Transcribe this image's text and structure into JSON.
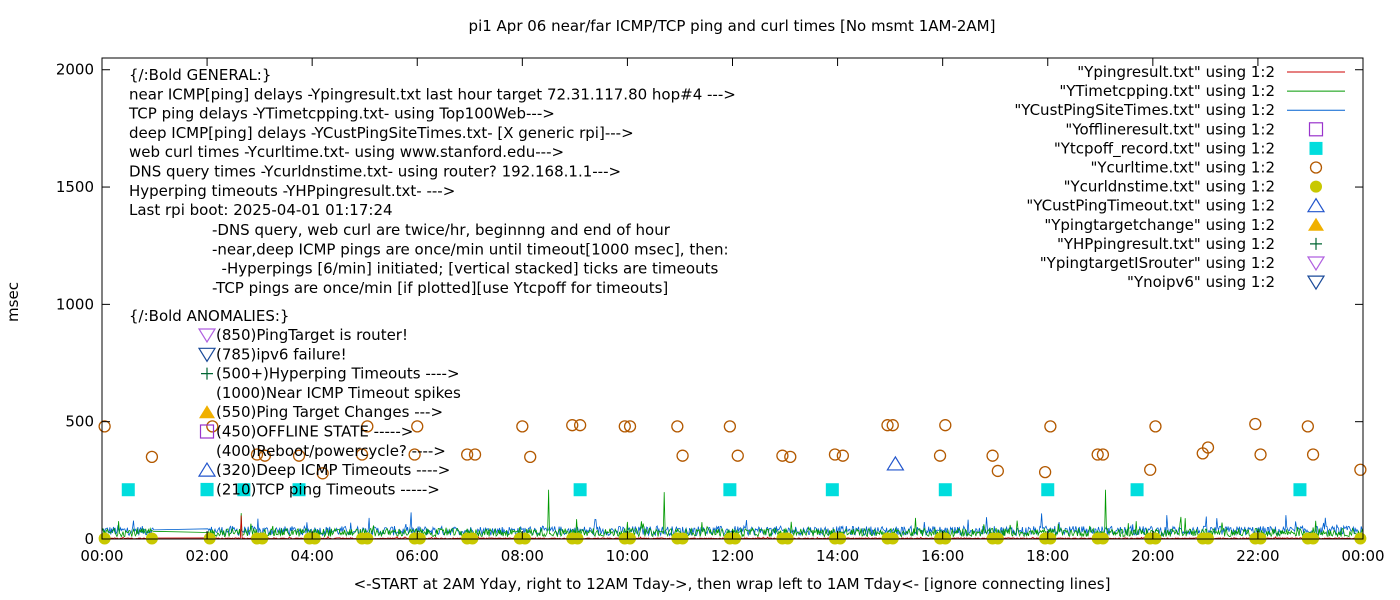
{
  "chart_data": {
    "type": "scatter",
    "title": "pi1 Apr 06  near/far ICMP/TCP ping and curl times [No msmt 1AM-2AM]",
    "xlabel": "<-START at 2AM Yday, right to 12AM Tday->, then wrap left to 1AM Tday<- [ignore connecting lines]",
    "ylabel": "msec",
    "xlim": [
      0,
      24
    ],
    "ylim": [
      0,
      2050
    ],
    "xticks": [
      "00:00",
      "02:00",
      "04:00",
      "06:00",
      "08:00",
      "10:00",
      "12:00",
      "14:00",
      "16:00",
      "18:00",
      "20:00",
      "22:00",
      "00:00"
    ],
    "yticks": [
      0,
      500,
      1000,
      1500,
      2000
    ],
    "grid": false,
    "legend_position": "top-right",
    "legend": [
      {
        "label": "\"Ypingresult.txt\" using 1:2",
        "marker": "line",
        "color": "#cc0000"
      },
      {
        "label": "\"YTimetcpping.txt\" using 1:2",
        "marker": "line",
        "color": "#009900"
      },
      {
        "label": "\"YCustPingSiteTimes.txt\" using 1:2",
        "marker": "line",
        "color": "#0060d0"
      },
      {
        "label": "\"Yofflineresult.txt\" using 1:2",
        "marker": "open-square",
        "color": "#9933cc"
      },
      {
        "label": "\"Ytcpoff_record.txt\" using 1:2",
        "marker": "filled-square",
        "color": "#00dddd"
      },
      {
        "label": "\"Ycurltime.txt\" using 1:2",
        "marker": "open-circle",
        "color": "#b35900"
      },
      {
        "label": "\"Ycurldnstime.txt\" using 1:2",
        "marker": "filled-circle",
        "color": "#c8c800"
      },
      {
        "label": "\"YCustPingTimeout.txt\" using 1:2",
        "marker": "open-triangle-up",
        "color": "#2255cc"
      },
      {
        "label": "\"Ypingtargetchange\" using 1:2",
        "marker": "filled-triangle-up",
        "color": "#f0b000"
      },
      {
        "label": "\"YHPpingresult.txt\" using 1:2",
        "marker": "plus",
        "color": "#006633"
      },
      {
        "label": "\"YpingtargetISrouter\" using 1:2",
        "marker": "open-triangle-down",
        "color": "#b060e0"
      },
      {
        "label": "\"Ynoipv6\" using 1:2",
        "marker": "open-triangle-down",
        "color": "#1a4a99"
      }
    ],
    "info_lines": [
      "{/:Bold GENERAL:}",
      "near ICMP[ping] delays -Ypingresult.txt last hour target 72.31.117.80 hop#4 --->",
      "TCP ping delays -YTimetcpping.txt- using Top100Web--->",
      "deep ICMP[ping] delays -YCustPingSiteTimes.txt- [X generic rpi]--->",
      "web curl times -Ycurltime.txt- using www.stanford.edu--->",
      "DNS query times -Ycurldnstime.txt- using router? 192.168.1.1--->",
      "Hyperping timeouts -YHPpingresult.txt- --->",
      "Last rpi boot: 2025-04-01 01:17:24"
    ],
    "info_notes": [
      "-DNS query, web curl are twice/hr, beginnng and end of hour",
      "-near,deep ICMP pings are once/min until timeout[1000 msec], then:",
      "  -Hyperpings [6/min] initiated; [vertical stacked] ticks are timeouts",
      "-TCP pings are once/min [if plotted][use Ytcpoff for timeouts]"
    ],
    "anomalies_title": "{/:Bold ANOMALIES:}",
    "anomalies": [
      {
        "label": "(850)PingTarget is router!",
        "marker": "open-triangle-down",
        "color": "#b060e0"
      },
      {
        "label": "(785)ipv6 failure!",
        "marker": "open-triangle-down",
        "color": "#1a4a99"
      },
      {
        "label": "(500+)Hyperping Timeouts ---->",
        "marker": "plus",
        "color": "#006633"
      },
      {
        "label": "(1000)Near ICMP Timeout spikes",
        "marker": "none",
        "color": "#000000"
      },
      {
        "label": "(550)Ping Target Changes --->",
        "marker": "filled-triangle-up",
        "color": "#f0b000"
      },
      {
        "label": "(450)OFFLINE STATE ----->",
        "marker": "open-square",
        "color": "#9933cc"
      },
      {
        "label": "(400)Reboot/powercycle? ---->",
        "marker": "none",
        "color": "#000000"
      },
      {
        "label": "(320)Deep ICMP Timeouts ---->",
        "marker": "open-triangle-up",
        "color": "#2255cc"
      },
      {
        "label": "(210)TCP ping Timeouts ----->",
        "marker": "filled-square",
        "color": "#00dddd"
      }
    ],
    "curl_times": [
      [
        0.05,
        480
      ],
      [
        0.95,
        350
      ],
      [
        2.1,
        480
      ],
      [
        2.95,
        360
      ],
      [
        3.1,
        355
      ],
      [
        3.75,
        355
      ],
      [
        4.2,
        280
      ],
      [
        4.95,
        360
      ],
      [
        5.05,
        480
      ],
      [
        5.95,
        360
      ],
      [
        6.0,
        480
      ],
      [
        6.95,
        360
      ],
      [
        7.1,
        360
      ],
      [
        8.0,
        480
      ],
      [
        8.15,
        350
      ],
      [
        8.95,
        485
      ],
      [
        9.1,
        485
      ],
      [
        9.95,
        480
      ],
      [
        10.05,
        480
      ],
      [
        10.95,
        480
      ],
      [
        11.05,
        355
      ],
      [
        11.95,
        480
      ],
      [
        12.1,
        355
      ],
      [
        12.95,
        355
      ],
      [
        13.1,
        350
      ],
      [
        13.95,
        360
      ],
      [
        14.1,
        355
      ],
      [
        14.95,
        485
      ],
      [
        15.05,
        485
      ],
      [
        15.95,
        355
      ],
      [
        16.05,
        485
      ],
      [
        16.95,
        355
      ],
      [
        17.05,
        290
      ],
      [
        17.95,
        285
      ],
      [
        18.05,
        480
      ],
      [
        18.95,
        360
      ],
      [
        19.05,
        360
      ],
      [
        19.95,
        295
      ],
      [
        20.05,
        480
      ],
      [
        20.95,
        365
      ],
      [
        21.05,
        390
      ],
      [
        21.95,
        490
      ],
      [
        22.05,
        360
      ],
      [
        22.95,
        480
      ],
      [
        23.05,
        360
      ],
      [
        23.95,
        295
      ]
    ],
    "dns_times": [
      [
        0.05,
        2
      ],
      [
        0.95,
        2
      ],
      [
        2.05,
        2
      ],
      [
        2.95,
        2
      ],
      [
        3.05,
        2
      ],
      [
        3.95,
        2
      ],
      [
        4.05,
        2
      ],
      [
        4.95,
        2
      ],
      [
        5.05,
        2
      ],
      [
        5.95,
        2
      ],
      [
        6.05,
        2
      ],
      [
        6.95,
        2
      ],
      [
        7.05,
        2
      ],
      [
        7.95,
        2
      ],
      [
        8.05,
        2
      ],
      [
        8.95,
        2
      ],
      [
        9.05,
        2
      ],
      [
        9.95,
        2
      ],
      [
        10.05,
        2
      ],
      [
        10.95,
        2
      ],
      [
        11.05,
        2
      ],
      [
        11.95,
        2
      ],
      [
        12.05,
        2
      ],
      [
        12.95,
        2
      ],
      [
        13.05,
        2
      ],
      [
        13.95,
        2
      ],
      [
        14.05,
        2
      ],
      [
        14.95,
        2
      ],
      [
        15.05,
        2
      ],
      [
        15.95,
        2
      ],
      [
        16.05,
        2
      ],
      [
        16.95,
        2
      ],
      [
        17.05,
        2
      ],
      [
        17.95,
        2
      ],
      [
        18.05,
        2
      ],
      [
        18.95,
        2
      ],
      [
        19.05,
        2
      ],
      [
        19.95,
        2
      ],
      [
        20.05,
        2
      ],
      [
        20.95,
        2
      ],
      [
        21.05,
        2
      ],
      [
        21.95,
        2
      ],
      [
        22.05,
        2
      ],
      [
        22.95,
        2
      ],
      [
        23.05,
        2
      ],
      [
        23.95,
        2
      ]
    ],
    "tcp_timeouts": [
      [
        0.5,
        210
      ],
      [
        2.0,
        210
      ],
      [
        2.7,
        210
      ],
      [
        3.75,
        210
      ],
      [
        9.1,
        210
      ],
      [
        11.95,
        210
      ],
      [
        13.9,
        210
      ],
      [
        16.05,
        210
      ],
      [
        18.0,
        210
      ],
      [
        19.7,
        210
      ],
      [
        22.8,
        210
      ]
    ],
    "deep_icmp_timeouts": [
      [
        15.1,
        320
      ]
    ],
    "tcp_spikes": [
      [
        2.65,
        110
      ],
      [
        8.5,
        210
      ],
      [
        10.7,
        200
      ],
      [
        19.1,
        210
      ]
    ]
  }
}
